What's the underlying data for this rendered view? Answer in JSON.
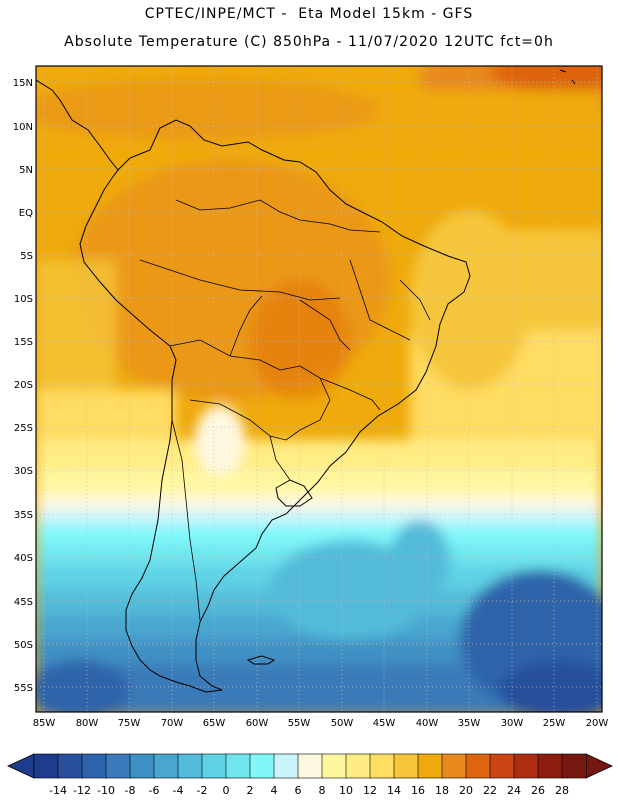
{
  "header": {
    "line1": "CPTEC/INPE/MCT -  Eta Model 15km - GFS",
    "line2": "Absolute Temperature (C) 850hPa - 11/07/2020 12UTC fct=0h"
  },
  "map": {
    "lat_labels": [
      "15N",
      "10N",
      "5N",
      "EQ",
      "5S",
      "10S",
      "15S",
      "20S",
      "25S",
      "30S",
      "35S",
      "40S",
      "45S",
      "50S",
      "55S"
    ],
    "lon_labels": [
      "85W",
      "80W",
      "75W",
      "70W",
      "65W",
      "60W",
      "55W",
      "50W",
      "45W",
      "40W",
      "35W",
      "30W",
      "25W",
      "20W"
    ],
    "grid": true
  },
  "colorbar": {
    "ticks": [
      "-14",
      "-12",
      "-10",
      "-8",
      "-6",
      "-4",
      "-2",
      "0",
      "2",
      "4",
      "6",
      "8",
      "10",
      "12",
      "14",
      "16",
      "18",
      "20",
      "22",
      "24",
      "26",
      "28"
    ],
    "colors": [
      "#1e3c8c",
      "#28509c",
      "#2f64aa",
      "#3a7ab8",
      "#3f90c4",
      "#48a6cf",
      "#52bbd9",
      "#5fd2e4",
      "#6fe6ee",
      "#80f8fa",
      "#c9f4fb",
      "#fff8e0",
      "#fff7a0",
      "#ffec84",
      "#ffdc62",
      "#f5c63a",
      "#efaa0c",
      "#e8891c",
      "#de6410",
      "#cc4412",
      "#ac2d10",
      "#8c1c10",
      "#741810"
    ],
    "underflow_color": "#1e3c8c",
    "overflow_color": "#741810"
  }
}
